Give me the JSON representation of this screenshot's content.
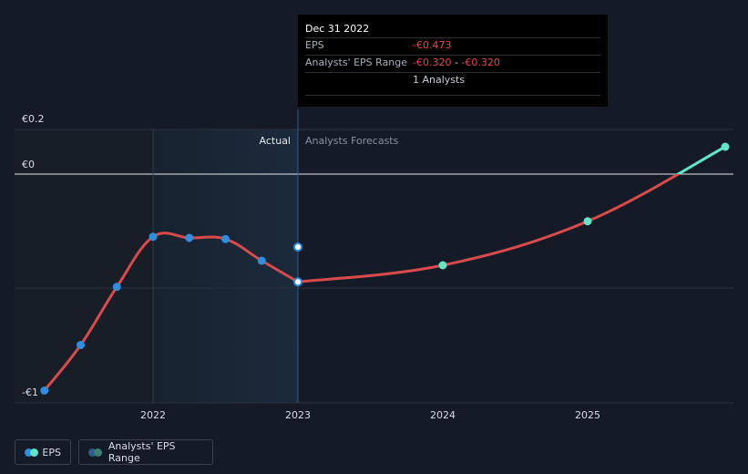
{
  "chart_data": {
    "type": "line",
    "y_ticks": [
      {
        "value": 0.2,
        "label": "€0.2"
      },
      {
        "value": 0,
        "label": "€0"
      },
      {
        "value": -1,
        "label": "-€1"
      }
    ],
    "ylim": [
      -1.05,
      0.2
    ],
    "x_ticks": [
      {
        "value": 2022,
        "label": "2022"
      },
      {
        "value": 2023,
        "label": "2023"
      },
      {
        "value": 2024,
        "label": "2024"
      },
      {
        "value": 2025,
        "label": "2025"
      }
    ],
    "xlim": [
      2020.9,
      2025.95
    ],
    "regions": {
      "actual_label": "Actual",
      "forecast_label": "Analysts Forecasts",
      "divider_x": 2023,
      "actual_shade_start": 2022
    },
    "series": [
      {
        "name": "EPS",
        "color_actual": "#d94a4a",
        "color_forecast": "#d94a4a",
        "color_forecast_above_zero": "#5ee6c7",
        "points_actual": [
          {
            "x": 2021.25,
            "y": -0.95
          },
          {
            "x": 2021.5,
            "y": -0.75
          },
          {
            "x": 2021.75,
            "y": -0.495
          },
          {
            "x": 2022.0,
            "y": -0.275
          },
          {
            "x": 2022.25,
            "y": -0.28
          },
          {
            "x": 2022.5,
            "y": -0.285
          },
          {
            "x": 2022.75,
            "y": -0.38
          },
          {
            "x": 2023.0,
            "y": -0.473
          }
        ],
        "points_forecast": [
          {
            "x": 2023.0,
            "y": -0.473
          },
          {
            "x": 2024.0,
            "y": -0.4
          },
          {
            "x": 2025.0,
            "y": -0.207
          },
          {
            "x": 2025.95,
            "y": 0.12
          }
        ]
      }
    ],
    "range_point": {
      "x": 2023.0,
      "y": -0.32
    }
  },
  "tooltip": {
    "date": "Dec 31 2022",
    "eps_label": "EPS",
    "eps_value": "-€0.473",
    "range_label": "Analysts' EPS Range",
    "range_low": "-€0.320",
    "range_sep": " - ",
    "range_high": "-€0.320",
    "analysts": "1 Analysts"
  },
  "legend": {
    "eps_label": "EPS",
    "range_label": "Analysts' EPS Range"
  },
  "colors": {
    "background": "#151b26",
    "actual_shade": "#1b2a3c",
    "dot_actual": "#2e8fe0",
    "dot_forecast": "#5ee6c7",
    "negative_text": "#e5484d"
  }
}
